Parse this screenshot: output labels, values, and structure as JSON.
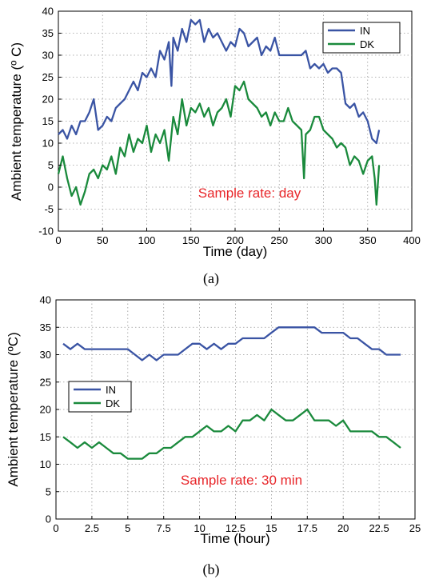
{
  "chart_data": [
    {
      "type": "line",
      "panel_label": "(a)",
      "xlabel": "Time (day)",
      "ylabel": "Ambient temperature (º C)",
      "xlim": [
        0,
        400
      ],
      "ylim": [
        -10,
        40
      ],
      "xticks": [
        0,
        50,
        100,
        150,
        200,
        250,
        300,
        350,
        400
      ],
      "yticks": [
        -10,
        -5,
        0,
        5,
        10,
        15,
        20,
        25,
        30,
        35,
        40
      ],
      "grid": true,
      "legend_position": "top-right",
      "annotation": "Sample rate: day",
      "annotation_color": "#e8262a",
      "series": [
        {
          "name": "IN",
          "color": "#3a54a4",
          "x": [
            0,
            5,
            10,
            15,
            20,
            25,
            30,
            35,
            40,
            45,
            50,
            55,
            60,
            65,
            70,
            75,
            80,
            85,
            90,
            95,
            100,
            105,
            110,
            115,
            120,
            125,
            128,
            130,
            135,
            140,
            145,
            150,
            155,
            160,
            165,
            170,
            175,
            180,
            185,
            190,
            195,
            200,
            205,
            210,
            215,
            220,
            225,
            230,
            235,
            240,
            245,
            250,
            255,
            260,
            265,
            270,
            275,
            280,
            285,
            290,
            295,
            300,
            305,
            310,
            315,
            320,
            325,
            330,
            335,
            340,
            345,
            350,
            355,
            360,
            363
          ],
          "values": [
            12,
            13,
            11,
            14,
            12,
            15,
            15,
            17,
            20,
            13,
            14,
            16,
            15,
            18,
            19,
            20,
            22,
            24,
            22,
            26,
            25,
            27,
            25,
            31,
            29,
            33,
            23,
            34,
            31,
            36,
            33,
            38,
            37,
            38,
            33,
            36,
            34,
            35,
            33,
            31,
            33,
            32,
            36,
            35,
            32,
            33,
            34,
            30,
            32,
            31,
            34,
            30,
            30,
            30,
            30,
            30,
            30,
            31,
            27,
            28,
            27,
            28,
            26,
            27,
            27,
            26,
            19,
            18,
            19,
            16,
            17,
            15,
            11,
            10,
            13
          ]
        },
        {
          "name": "DK",
          "color": "#1a8a3c",
          "x": [
            0,
            5,
            10,
            15,
            20,
            25,
            30,
            35,
            40,
            45,
            50,
            55,
            60,
            65,
            70,
            75,
            80,
            85,
            90,
            95,
            100,
            105,
            110,
            115,
            120,
            125,
            130,
            135,
            140,
            145,
            150,
            155,
            160,
            165,
            170,
            175,
            180,
            185,
            190,
            195,
            200,
            205,
            210,
            215,
            220,
            225,
            230,
            235,
            240,
            245,
            250,
            255,
            260,
            265,
            270,
            275,
            278,
            280,
            285,
            290,
            295,
            300,
            305,
            310,
            315,
            320,
            325,
            330,
            335,
            340,
            345,
            350,
            355,
            358,
            360,
            363
          ],
          "values": [
            3,
            7,
            2,
            -2,
            0,
            -4,
            -1,
            3,
            4,
            2,
            5,
            4,
            7,
            3,
            9,
            7,
            12,
            8,
            11,
            10,
            14,
            8,
            12,
            10,
            13,
            6,
            16,
            12,
            20,
            14,
            18,
            17,
            19,
            16,
            18,
            14,
            17,
            18,
            20,
            16,
            23,
            22,
            24,
            20,
            19,
            18,
            16,
            17,
            14,
            17,
            15,
            15,
            18,
            15,
            14,
            13,
            2,
            12,
            13,
            16,
            16,
            13,
            12,
            11,
            9,
            10,
            9,
            5,
            7,
            6,
            3,
            6,
            7,
            2,
            -4,
            5
          ]
        }
      ]
    },
    {
      "type": "line",
      "panel_label": "(b)",
      "xlabel": "Time (hour)",
      "ylabel": "Ambient temperature (ºC)",
      "xlim": [
        0,
        25
      ],
      "ylim": [
        0,
        40
      ],
      "xticks": [
        0,
        2.5,
        5,
        7.5,
        10,
        12.5,
        15,
        17.5,
        20,
        22.5,
        25
      ],
      "yticks": [
        0,
        5,
        10,
        15,
        20,
        25,
        30,
        35,
        40
      ],
      "grid": true,
      "legend_position": "middle-left",
      "annotation": "Sample rate: 30 min",
      "annotation_color": "#e8262a",
      "series": [
        {
          "name": "IN",
          "color": "#3a54a4",
          "x": [
            0.5,
            1,
            1.5,
            2,
            2.5,
            3,
            3.5,
            4,
            4.5,
            5,
            5.5,
            6,
            6.5,
            7,
            7.5,
            8,
            8.5,
            9,
            9.5,
            10,
            10.5,
            11,
            11.5,
            12,
            12.5,
            13,
            13.5,
            14,
            14.5,
            15,
            15.5,
            16,
            16.5,
            17,
            17.5,
            18,
            18.5,
            19,
            19.5,
            20,
            20.5,
            21,
            21.5,
            22,
            22.5,
            23,
            23.5,
            24
          ],
          "values": [
            32,
            31,
            32,
            31,
            31,
            31,
            31,
            31,
            31,
            31,
            30,
            29,
            30,
            29,
            30,
            30,
            30,
            31,
            32,
            32,
            31,
            32,
            31,
            32,
            32,
            33,
            33,
            33,
            33,
            34,
            35,
            35,
            35,
            35,
            35,
            35,
            34,
            34,
            34,
            34,
            33,
            33,
            32,
            31,
            31,
            30,
            30,
            30
          ]
        },
        {
          "name": "DK",
          "color": "#1a8a3c",
          "x": [
            0.5,
            1,
            1.5,
            2,
            2.5,
            3,
            3.5,
            4,
            4.5,
            5,
            5.5,
            6,
            6.5,
            7,
            7.5,
            8,
            8.5,
            9,
            9.5,
            10,
            10.5,
            11,
            11.5,
            12,
            12.5,
            13,
            13.5,
            14,
            14.5,
            15,
            15.5,
            16,
            16.5,
            17,
            17.5,
            18,
            18.5,
            19,
            19.5,
            20,
            20.5,
            21,
            21.5,
            22,
            22.5,
            23,
            23.5,
            24
          ],
          "values": [
            15,
            14,
            13,
            14,
            13,
            14,
            13,
            12,
            12,
            11,
            11,
            11,
            12,
            12,
            13,
            13,
            14,
            15,
            15,
            16,
            17,
            16,
            16,
            17,
            16,
            18,
            18,
            19,
            18,
            20,
            19,
            18,
            18,
            19,
            20,
            18,
            18,
            18,
            17,
            18,
            16,
            16,
            16,
            16,
            15,
            15,
            14,
            13
          ]
        }
      ]
    }
  ]
}
